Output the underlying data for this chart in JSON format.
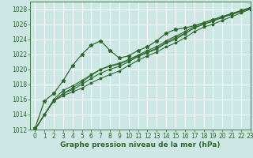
{
  "bg_color": "#cde8e4",
  "grid_color": "#b0d4cf",
  "line_color": "#2d6a2d",
  "xlabel": "Graphe pression niveau de la mer (hPa)",
  "xlabel_fontsize": 6.5,
  "xlim": [
    -0.5,
    23
  ],
  "ylim": [
    1012,
    1029
  ],
  "yticks": [
    1012,
    1014,
    1016,
    1018,
    1020,
    1022,
    1024,
    1026,
    1028
  ],
  "xticks": [
    0,
    1,
    2,
    3,
    4,
    5,
    6,
    7,
    8,
    9,
    10,
    11,
    12,
    13,
    14,
    15,
    16,
    17,
    18,
    19,
    20,
    21,
    22,
    23
  ],
  "series": [
    [
      1012.0,
      1014.0,
      1015.8,
      1016.5,
      1017.0,
      1017.5,
      1018.2,
      1018.8,
      1019.3,
      1019.8,
      1020.5,
      1021.2,
      1021.8,
      1022.3,
      1023.0,
      1023.5,
      1024.2,
      1025.0,
      1025.6,
      1026.0,
      1026.5,
      1027.0,
      1027.5,
      1028.0
    ],
    [
      1012.0,
      1014.0,
      1015.8,
      1016.8,
      1017.3,
      1018.0,
      1018.8,
      1019.5,
      1020.0,
      1020.4,
      1021.0,
      1021.7,
      1022.2,
      1022.7,
      1023.5,
      1024.0,
      1024.7,
      1025.5,
      1026.0,
      1026.4,
      1026.9,
      1027.3,
      1027.7,
      1028.1
    ],
    [
      1012.0,
      1014.0,
      1015.8,
      1016.8,
      1017.5,
      1018.3,
      1019.2,
      1020.0,
      1020.5,
      1020.8,
      1021.3,
      1021.9,
      1022.5,
      1023.0,
      1023.8,
      1024.4,
      1025.0,
      1025.7,
      1026.2,
      1026.6,
      1027.0,
      1027.4,
      1027.8,
      1028.2
    ],
    [
      1012.2,
      1015.8,
      1016.8,
      1018.5,
      1020.5,
      1022.0,
      1023.2,
      1023.8,
      1022.5,
      1021.5,
      1021.8,
      1022.5,
      1023.0,
      1023.8,
      1024.8,
      1025.3,
      1025.5,
      1025.8,
      1026.2,
      1026.6,
      1027.0,
      1027.4,
      1027.8,
      1028.2
    ],
    [
      1012.0,
      1014.0,
      1016.0,
      1017.2,
      1017.8,
      1018.5,
      1019.3,
      1020.0,
      1020.4,
      1020.7,
      1021.2,
      1021.8,
      1022.3,
      1022.8,
      1023.6,
      1024.2,
      1024.8,
      1025.5,
      1026.0,
      1026.4,
      1026.9,
      1027.3,
      1027.7,
      1028.1
    ]
  ]
}
